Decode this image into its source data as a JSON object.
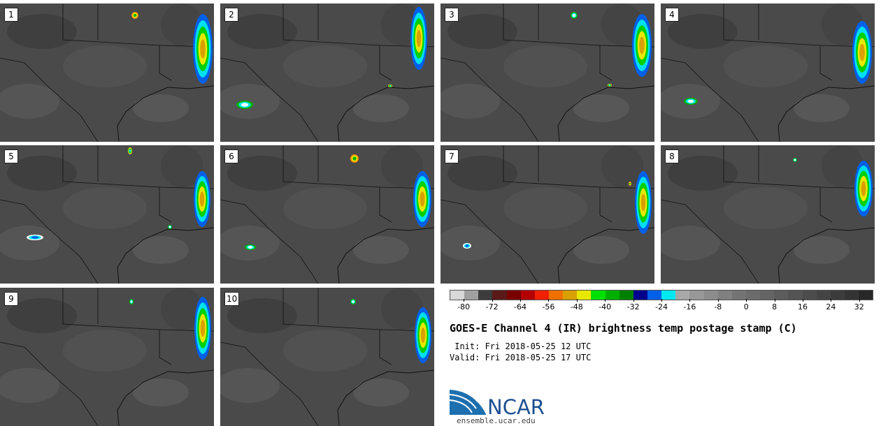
{
  "panels": [
    {
      "id": "1"
    },
    {
      "id": "2"
    },
    {
      "id": "3"
    },
    {
      "id": "4"
    },
    {
      "id": "5"
    },
    {
      "id": "6"
    },
    {
      "id": "7"
    },
    {
      "id": "8"
    },
    {
      "id": "9"
    },
    {
      "id": "10"
    }
  ],
  "colorbar": {
    "colors": [
      "#d8d8d8",
      "#a0a0a0",
      "#3c3c3c",
      "#5a1a1a",
      "#7a0000",
      "#b40000",
      "#f02000",
      "#f07000",
      "#d8a000",
      "#e8e800",
      "#00e000",
      "#00b000",
      "#008000",
      "#00008c",
      "#0060e8",
      "#00e8f0",
      "#a8a8a8",
      "#989898",
      "#8c8c8c",
      "#808080",
      "#747474",
      "#6c6c6c",
      "#646464",
      "#5c5c5c",
      "#545454",
      "#4c4c4c",
      "#444444",
      "#3c3c3c",
      "#343434",
      "#282828"
    ],
    "ticks": [
      "-80",
      "-72",
      "-64",
      "-56",
      "-48",
      "-40",
      "-32",
      "-24",
      "-16",
      "-8",
      "0",
      "8",
      "16",
      "24",
      "32"
    ],
    "min": -84,
    "max": 36
  },
  "title": "GOES-E Channel 4 (IR) brightness temp postage stamp (C)",
  "init": " Init: Fri 2018-05-25 12 UTC",
  "valid": "Valid: Fri 2018-05-25 17 UTC",
  "logo": {
    "text": "NCAR",
    "color": "#1d4f91"
  },
  "website": "ensemble.ucar.edu"
}
